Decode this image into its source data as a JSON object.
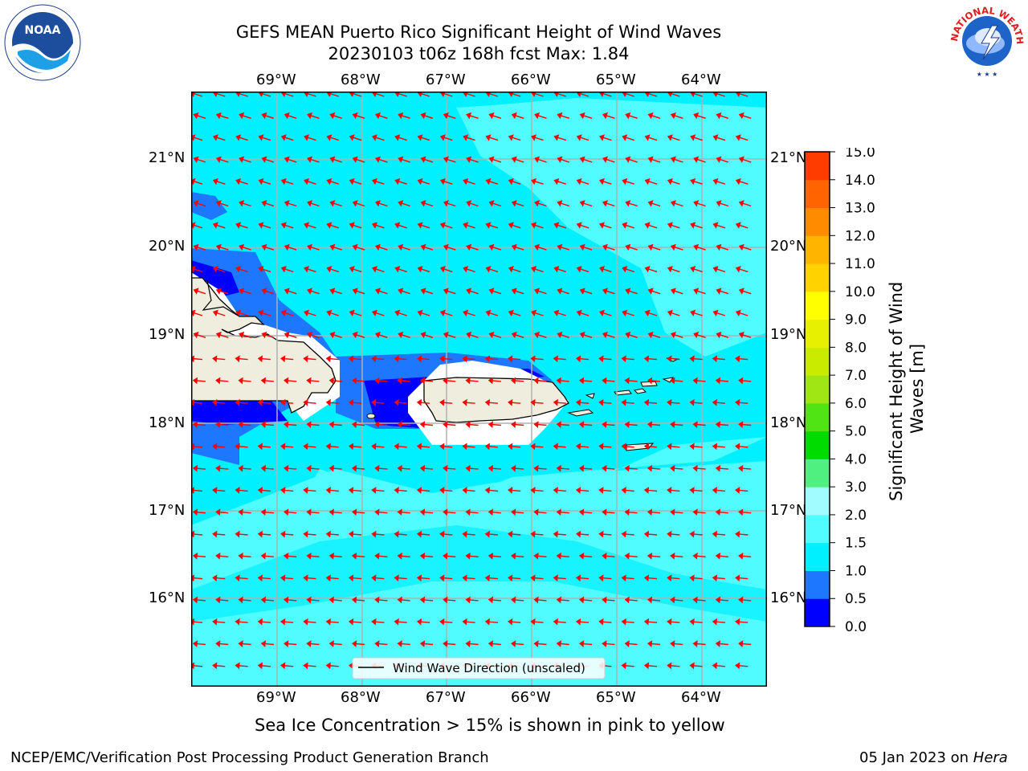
{
  "header": {
    "title_line1": "GEFS MEAN Puerto Rico Significant Height of Wind Waves",
    "title_line2": "20230103 t06z 168h fcst   Max: 1.84"
  },
  "map": {
    "lon_labels": [
      "69°W",
      "68°W",
      "67°W",
      "66°W",
      "65°W",
      "64°W"
    ],
    "lat_labels": [
      "21°N",
      "20°N",
      "19°N",
      "18°N",
      "17°N",
      "16°N"
    ],
    "legend_label": "Wind Wave Direction (unscaled)"
  },
  "colorbar": {
    "label": "Significant Height of Wind Waves [m]",
    "ticks": [
      "0.0",
      "0.5",
      "1.0",
      "1.5",
      "2.0",
      "3.0",
      "4.0",
      "5.0",
      "6.0",
      "7.0",
      "8.0",
      "9.0",
      "10.0",
      "11.0",
      "12.0",
      "13.0",
      "14.0",
      "15.0"
    ],
    "colors": [
      "#0000ff",
      "#1e78ff",
      "#00f0ff",
      "#50fcff",
      "#a0fcff",
      "#50f080",
      "#00dc00",
      "#50e414",
      "#a0e614",
      "#c8eb00",
      "#e6f000",
      "#ffff00",
      "#ffd200",
      "#ffb400",
      "#ff8c00",
      "#ff6400",
      "#ff3c00",
      "#ff0000"
    ]
  },
  "logos": {
    "noaa_text": "NOAA",
    "nws_text": "NATIONAL WEATHER SERVICE"
  },
  "footer": {
    "sea_ice_note": "Sea Ice Concentration > 15% is shown in pink to yellow",
    "branch": "NCEP/EMC/Verification Post Processing Product Generation Branch",
    "date": "05 Jan 2023 on ",
    "machine": "Hera"
  }
}
